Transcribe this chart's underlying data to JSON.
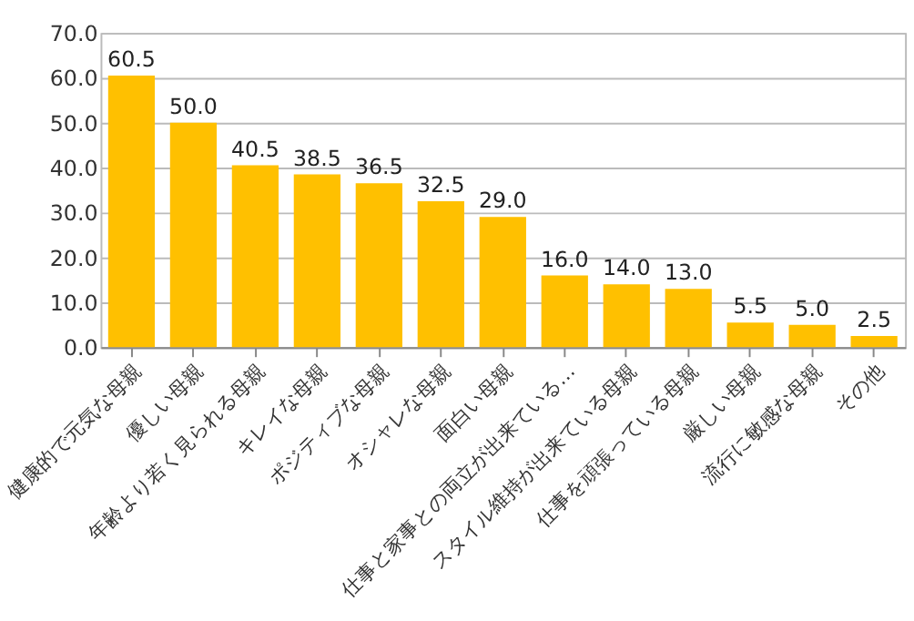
{
  "chart_data": {
    "type": "bar",
    "categories": [
      "健康的で元気な母親",
      "優しい母親",
      "年齢より若く見られる母親",
      "キレイな母親",
      "ポジティブな母親",
      "オシャレな母親",
      "面白い母親",
      "仕事と家事との両立が出来ている…",
      "スタイル維持が出来ている母親",
      "仕事を頑張っている母親",
      "厳しい母親",
      "流行に敏感な母親",
      "その他"
    ],
    "values": [
      60.5,
      50.0,
      40.5,
      38.5,
      36.5,
      32.5,
      29.0,
      16.0,
      14.0,
      13.0,
      5.5,
      5.0,
      2.5
    ],
    "value_labels": [
      "60.5",
      "50.0",
      "40.5",
      "38.5",
      "36.5",
      "32.5",
      "29.0",
      "16.0",
      "14.0",
      "13.0",
      "5.5",
      "5.0",
      "2.5"
    ],
    "color": "#ffc000",
    "ylim": [
      0,
      70
    ],
    "yticks": [
      {
        "value": 0,
        "label": "0.0"
      },
      {
        "value": 10,
        "label": "10.0"
      },
      {
        "value": 20,
        "label": "20.0"
      },
      {
        "value": 30,
        "label": "30.0"
      },
      {
        "value": 40,
        "label": "40.0"
      },
      {
        "value": 50,
        "label": "50.0"
      },
      {
        "value": 60,
        "label": "60.0"
      },
      {
        "value": 70,
        "label": "70.0"
      }
    ],
    "grid": "y"
  }
}
